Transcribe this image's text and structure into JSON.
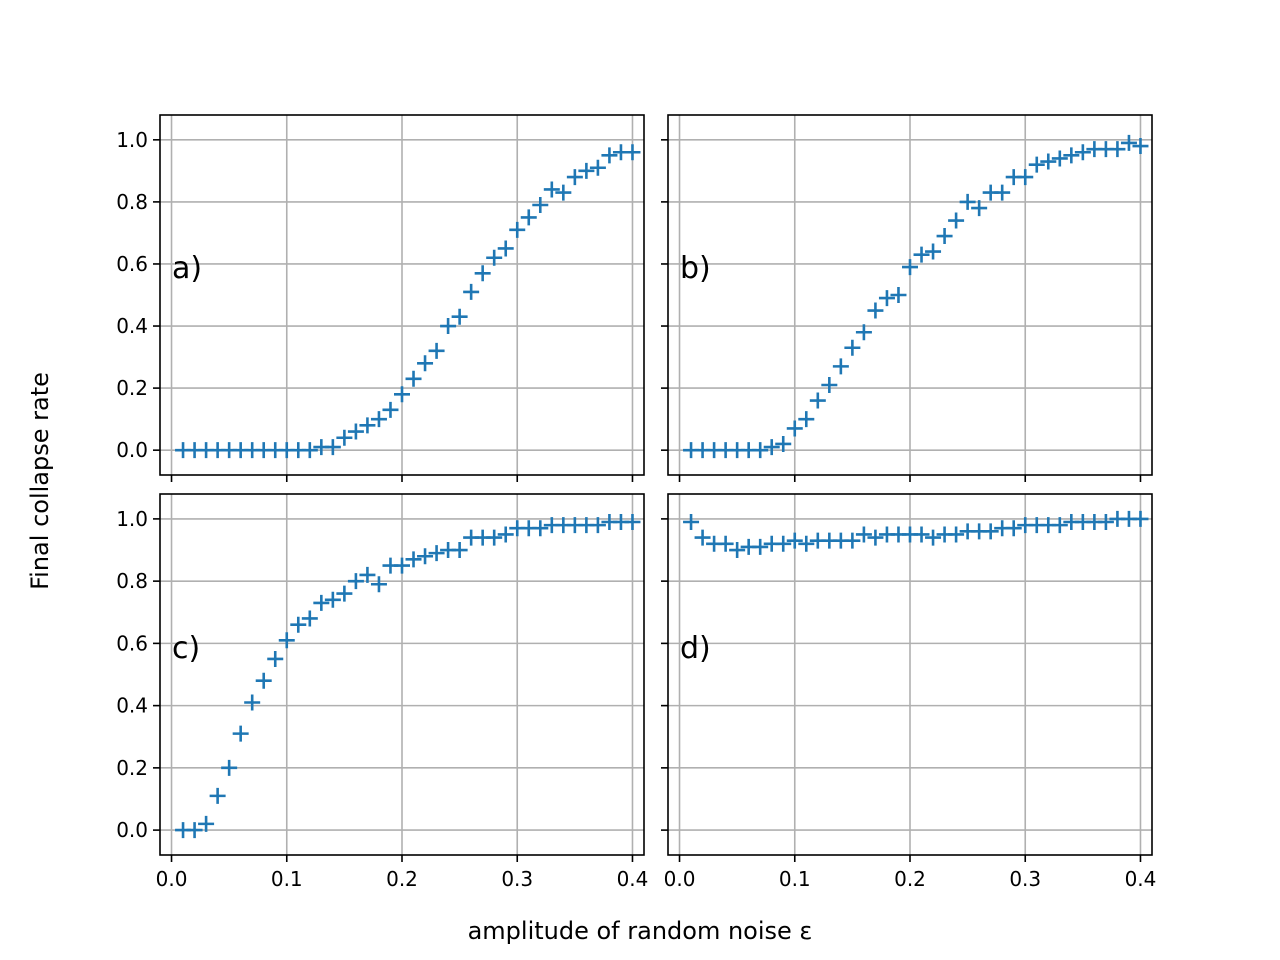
{
  "figure": {
    "xlabel": "amplitude of random noise ε",
    "ylabel": "Final collapse rate",
    "marker_color": "#1f77b4"
  },
  "chart_data": [
    {
      "type": "scatter",
      "panel_label": "a)",
      "xlim": [
        -0.01,
        0.41
      ],
      "ylim": [
        -0.08,
        1.08
      ],
      "xticks": [
        "0.0",
        "0.1",
        "0.2",
        "0.3",
        "0.4"
      ],
      "yticks": [
        "0.0",
        "0.2",
        "0.4",
        "0.6",
        "0.8",
        "1.0"
      ],
      "grid": true,
      "series": [
        {
          "x": [
            0.01,
            0.02,
            0.03,
            0.04,
            0.05,
            0.06,
            0.07,
            0.08,
            0.09,
            0.1,
            0.11,
            0.12,
            0.13,
            0.14,
            0.15,
            0.16,
            0.17,
            0.18,
            0.19,
            0.2,
            0.21,
            0.22,
            0.23,
            0.24,
            0.25,
            0.26,
            0.27,
            0.28,
            0.29,
            0.3,
            0.31,
            0.32,
            0.33,
            0.34,
            0.35,
            0.36,
            0.37,
            0.38,
            0.39,
            0.4
          ],
          "y": [
            0.0,
            0.0,
            0.0,
            0.0,
            0.0,
            0.0,
            0.0,
            0.0,
            0.0,
            0.0,
            0.0,
            0.0,
            0.01,
            0.01,
            0.04,
            0.06,
            0.08,
            0.1,
            0.13,
            0.18,
            0.23,
            0.28,
            0.32,
            0.4,
            0.43,
            0.51,
            0.57,
            0.62,
            0.65,
            0.71,
            0.75,
            0.79,
            0.84,
            0.83,
            0.88,
            0.9,
            0.91,
            0.95,
            0.96,
            0.96
          ]
        }
      ]
    },
    {
      "type": "scatter",
      "panel_label": "b)",
      "xlim": [
        -0.01,
        0.41
      ],
      "ylim": [
        -0.08,
        1.08
      ],
      "xticks": [
        "0.0",
        "0.1",
        "0.2",
        "0.3",
        "0.4"
      ],
      "yticks": [
        "0.0",
        "0.2",
        "0.4",
        "0.6",
        "0.8",
        "1.0"
      ],
      "grid": true,
      "series": [
        {
          "x": [
            0.01,
            0.02,
            0.03,
            0.04,
            0.05,
            0.06,
            0.07,
            0.08,
            0.09,
            0.1,
            0.11,
            0.12,
            0.13,
            0.14,
            0.15,
            0.16,
            0.17,
            0.18,
            0.19,
            0.2,
            0.21,
            0.22,
            0.23,
            0.24,
            0.25,
            0.26,
            0.27,
            0.28,
            0.29,
            0.3,
            0.31,
            0.32,
            0.33,
            0.34,
            0.35,
            0.36,
            0.37,
            0.38,
            0.39,
            0.4
          ],
          "y": [
            0.0,
            0.0,
            0.0,
            0.0,
            0.0,
            0.0,
            0.0,
            0.01,
            0.02,
            0.07,
            0.1,
            0.16,
            0.21,
            0.27,
            0.33,
            0.38,
            0.45,
            0.49,
            0.5,
            0.59,
            0.63,
            0.64,
            0.69,
            0.74,
            0.8,
            0.78,
            0.83,
            0.83,
            0.88,
            0.88,
            0.92,
            0.93,
            0.94,
            0.95,
            0.96,
            0.97,
            0.97,
            0.97,
            0.99,
            0.98
          ]
        }
      ]
    },
    {
      "type": "scatter",
      "panel_label": "c)",
      "xlim": [
        -0.01,
        0.41
      ],
      "ylim": [
        -0.08,
        1.08
      ],
      "xticks": [
        "0.0",
        "0.1",
        "0.2",
        "0.3",
        "0.4"
      ],
      "yticks": [
        "0.0",
        "0.2",
        "0.4",
        "0.6",
        "0.8",
        "1.0"
      ],
      "grid": true,
      "series": [
        {
          "x": [
            0.01,
            0.02,
            0.03,
            0.04,
            0.05,
            0.06,
            0.07,
            0.08,
            0.09,
            0.1,
            0.11,
            0.12,
            0.13,
            0.14,
            0.15,
            0.16,
            0.17,
            0.18,
            0.19,
            0.2,
            0.21,
            0.22,
            0.23,
            0.24,
            0.25,
            0.26,
            0.27,
            0.28,
            0.29,
            0.3,
            0.31,
            0.32,
            0.33,
            0.34,
            0.35,
            0.36,
            0.37,
            0.38,
            0.39,
            0.4
          ],
          "y": [
            0.0,
            0.0,
            0.02,
            0.11,
            0.2,
            0.31,
            0.41,
            0.48,
            0.55,
            0.61,
            0.66,
            0.68,
            0.73,
            0.74,
            0.76,
            0.8,
            0.82,
            0.79,
            0.85,
            0.85,
            0.87,
            0.88,
            0.89,
            0.9,
            0.9,
            0.94,
            0.94,
            0.94,
            0.95,
            0.97,
            0.97,
            0.97,
            0.98,
            0.98,
            0.98,
            0.98,
            0.98,
            0.99,
            0.99,
            0.99
          ]
        }
      ]
    },
    {
      "type": "scatter",
      "panel_label": "d)",
      "xlim": [
        -0.01,
        0.41
      ],
      "ylim": [
        -0.08,
        1.08
      ],
      "xticks": [
        "0.0",
        "0.1",
        "0.2",
        "0.3",
        "0.4"
      ],
      "yticks": [
        "0.0",
        "0.2",
        "0.4",
        "0.6",
        "0.8",
        "1.0"
      ],
      "grid": true,
      "series": [
        {
          "x": [
            0.01,
            0.02,
            0.03,
            0.04,
            0.05,
            0.06,
            0.07,
            0.08,
            0.09,
            0.1,
            0.11,
            0.12,
            0.13,
            0.14,
            0.15,
            0.16,
            0.17,
            0.18,
            0.19,
            0.2,
            0.21,
            0.22,
            0.23,
            0.24,
            0.25,
            0.26,
            0.27,
            0.28,
            0.29,
            0.3,
            0.31,
            0.32,
            0.33,
            0.34,
            0.35,
            0.36,
            0.37,
            0.38,
            0.39,
            0.4
          ],
          "y": [
            0.99,
            0.94,
            0.92,
            0.92,
            0.9,
            0.91,
            0.91,
            0.92,
            0.92,
            0.93,
            0.92,
            0.93,
            0.93,
            0.93,
            0.93,
            0.95,
            0.94,
            0.95,
            0.95,
            0.95,
            0.95,
            0.94,
            0.95,
            0.95,
            0.96,
            0.96,
            0.96,
            0.97,
            0.97,
            0.98,
            0.98,
            0.98,
            0.98,
            0.99,
            0.99,
            0.99,
            0.99,
            1.0,
            1.0,
            1.0
          ]
        }
      ]
    }
  ]
}
